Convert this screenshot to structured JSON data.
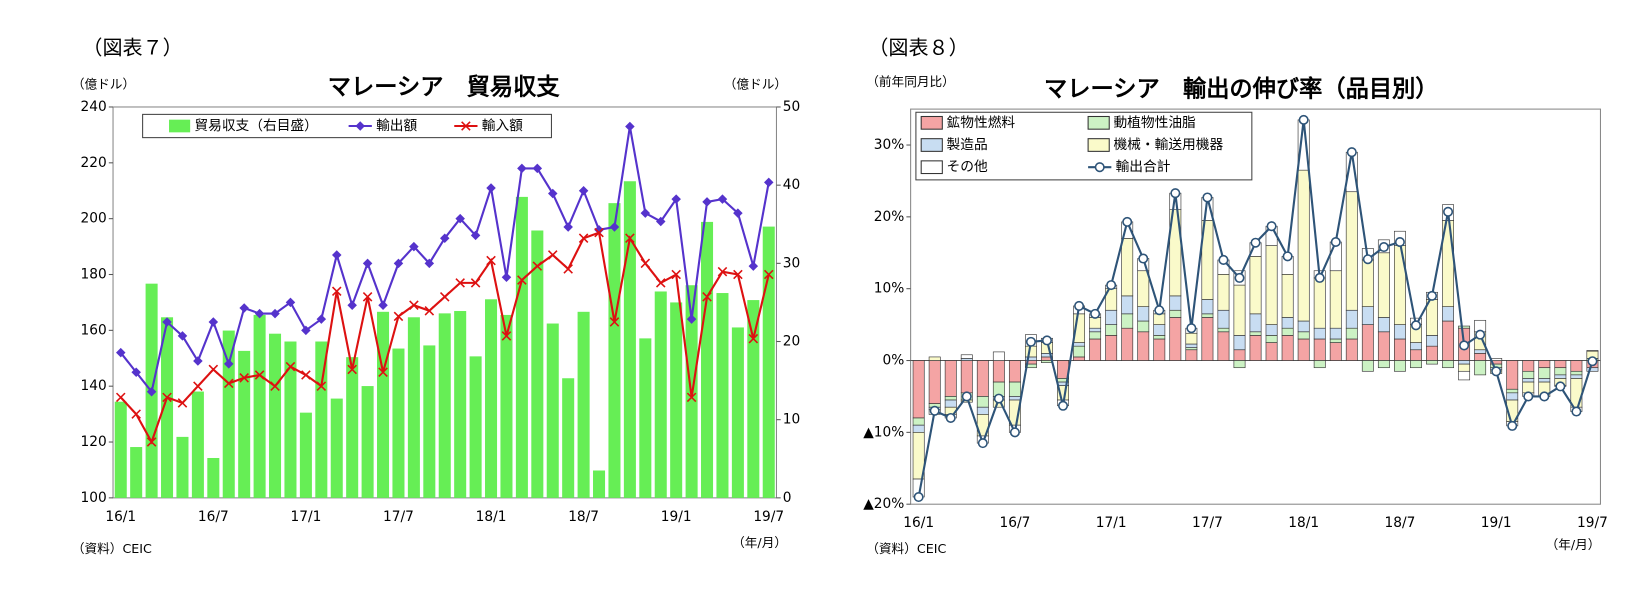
{
  "chart_data": [
    {
      "type": "combo",
      "figure_label": "（図表７）",
      "title": "マレーシア　貿易収支",
      "y_unit": "（億ドル）",
      "y2_unit": "（億ドル）",
      "source": "（資料）CEIC",
      "x_unit": "（年/月）",
      "categories": [
        "16/1",
        null,
        null,
        null,
        null,
        null,
        "16/7",
        null,
        null,
        null,
        null,
        null,
        "17/1",
        null,
        null,
        null,
        null,
        null,
        "17/7",
        null,
        null,
        null,
        null,
        null,
        "18/1",
        null,
        null,
        null,
        null,
        null,
        "18/7",
        null,
        null,
        null,
        null,
        null,
        "19/1",
        null,
        null,
        null,
        null,
        null,
        "19/7"
      ],
      "ylim": [
        100,
        240
      ],
      "yticks": [
        100,
        120,
        140,
        160,
        180,
        200,
        220,
        240
      ],
      "y2lim": [
        0,
        50
      ],
      "y2ticks": [
        0,
        10,
        20,
        30,
        40,
        50
      ],
      "series": [
        {
          "name": "貿易収支（右目盛）",
          "kind": "bar",
          "axis": "y2",
          "color": "#66ee55",
          "values": [
            12.3,
            6.5,
            27.4,
            23.1,
            7.8,
            13.6,
            5.1,
            21.4,
            18.8,
            23.4,
            21.0,
            20.0,
            10.9,
            20.0,
            12.7,
            18.0,
            14.3,
            23.8,
            19.1,
            23.1,
            19.5,
            23.6,
            23.9,
            18.1,
            25.4,
            23.4,
            38.5,
            34.2,
            22.3,
            15.3,
            23.8,
            3.5,
            37.7,
            40.5,
            20.4,
            26.4,
            25.0,
            27.2,
            35.3,
            26.2,
            21.8,
            25.3,
            34.7
          ]
        },
        {
          "name": "輸出額",
          "kind": "line",
          "marker": "diamond",
          "color": "#5533cc",
          "values": [
            152,
            145,
            138,
            163,
            158,
            149,
            163,
            148,
            168,
            166,
            166,
            170,
            160,
            164,
            187,
            169,
            184,
            169,
            184,
            190,
            184,
            193,
            200,
            194,
            211,
            179,
            218,
            218,
            209,
            197,
            210,
            196,
            197,
            233,
            202,
            199,
            207,
            164,
            206,
            207,
            202,
            183,
            213
          ]
        },
        {
          "name": "輸入額",
          "kind": "line",
          "marker": "x",
          "color": "#dd1111",
          "values": [
            136,
            130,
            120,
            136,
            134,
            140,
            146,
            141,
            143,
            144,
            140,
            147,
            144,
            140,
            174,
            146,
            172,
            145,
            165,
            169,
            167,
            172,
            177,
            177,
            185,
            158,
            178,
            183,
            187,
            182,
            193,
            195,
            163,
            193,
            184,
            177,
            180,
            136,
            172,
            181,
            180,
            157,
            180
          ]
        }
      ]
    },
    {
      "type": "stacked_bar",
      "figure_label": "（図表８）",
      "title": "マレーシア　輸出の伸び率（品目別）",
      "y_unit": "（前年同月比）",
      "source": "（資料）CEIC",
      "x_unit": "（年/月）",
      "categories": [
        "16/1",
        null,
        null,
        null,
        null,
        null,
        "16/7",
        null,
        null,
        null,
        null,
        null,
        "17/1",
        null,
        null,
        null,
        null,
        null,
        "17/7",
        null,
        null,
        null,
        null,
        null,
        "18/1",
        null,
        null,
        null,
        null,
        null,
        "18/7",
        null,
        null,
        null,
        null,
        null,
        "19/1",
        null,
        null,
        null,
        null,
        null,
        "19/7"
      ],
      "ylim": [
        -20,
        35
      ],
      "yticks": [
        {
          "value": -20,
          "label": "▲20%"
        },
        {
          "value": -10,
          "label": "▲10%"
        },
        {
          "value": 0,
          "label": "0%"
        },
        {
          "value": 10,
          "label": "10%"
        },
        {
          "value": 20,
          "label": "20%"
        },
        {
          "value": 30,
          "label": "30%"
        }
      ],
      "series": [
        {
          "name": "鉱物性燃料",
          "kind": "bar",
          "color": "#f4a4a4",
          "values": [
            -8,
            -6,
            -5,
            -4.5,
            -5,
            -3,
            -3,
            -0.5,
            0.5,
            -2.5,
            0.5,
            3,
            3.5,
            4.5,
            4,
            3,
            6,
            1.5,
            6,
            4,
            1.5,
            3.5,
            2.5,
            3.5,
            3,
            3,
            2.5,
            3,
            5,
            4,
            3,
            1.5,
            2,
            5.5,
            4.5,
            1,
            -0.5,
            -4,
            -1.5,
            -1,
            -1,
            -1.5,
            -1
          ]
        },
        {
          "name": "動植物性油脂",
          "kind": "bar",
          "color": "#ccf2c4",
          "values": [
            -1,
            -0.5,
            -0.5,
            -1,
            -1.5,
            -2,
            -2,
            -0.5,
            -0.3,
            -0.5,
            1.5,
            1,
            1.5,
            2,
            1.5,
            0.5,
            1,
            0.3,
            0.5,
            0.5,
            -1,
            0.5,
            1,
            1,
            1,
            -1,
            0.5,
            1.5,
            -1.5,
            -1,
            -1.5,
            -1,
            -0.5,
            -1,
            0.3,
            -2,
            -0.5,
            -0.5,
            -1,
            -1.5,
            -1,
            -0.5,
            0.3
          ]
        },
        {
          "name": "製造品",
          "kind": "bar",
          "color": "#c8ddf2",
          "values": [
            -1,
            -0.3,
            -1,
            0.3,
            -1,
            -0.5,
            -0.5,
            0.5,
            0.5,
            -0.5,
            0.5,
            0.5,
            2,
            2.5,
            2,
            1.5,
            2,
            0.5,
            2,
            2.5,
            2,
            2.5,
            1.5,
            1.5,
            1.5,
            1.5,
            1.5,
            2.5,
            2.5,
            2,
            2,
            1,
            1.5,
            2,
            -0.5,
            0.5,
            -0.3,
            -1,
            -0.5,
            -0.5,
            -0.5,
            -0.5,
            -0.5
          ]
        },
        {
          "name": "機械・輸送用機器",
          "kind": "bar",
          "color": "#fafaca",
          "values": [
            -6.5,
            0.5,
            -1,
            -0.3,
            -3,
            -1,
            -3.5,
            1.5,
            1.5,
            -2,
            4,
            1.5,
            3,
            8,
            5,
            1.5,
            12,
            1.5,
            11,
            5,
            7,
            8,
            11,
            6,
            21,
            7,
            8,
            16.5,
            6.5,
            9,
            11,
            2.5,
            5,
            12,
            -1,
            2.5,
            -0.5,
            -3,
            -1.5,
            -2,
            -1,
            -4,
            1
          ]
        },
        {
          "name": "その他",
          "kind": "bar",
          "color": "#ffffff",
          "values": [
            -2.5,
            -0.7,
            -0.5,
            0.5,
            -1,
            1.2,
            -1,
            1.6,
            0.6,
            -0.8,
            1.1,
            0.5,
            0.5,
            2.3,
            1.7,
            0.5,
            2.3,
            0.7,
            3.2,
            2,
            2,
            1.9,
            2.7,
            2.5,
            7,
            1,
            4,
            5.5,
            1.6,
            1.8,
            2,
            0.9,
            1,
            2.2,
            -1.2,
            1.6,
            0.3,
            -0.6,
            -0.5,
            0,
            -0.1,
            -0.6,
            0.1
          ]
        },
        {
          "name": "輸出合計",
          "kind": "line",
          "marker": "circle",
          "color": "#2e5478",
          "values": [
            -19,
            -7,
            -8,
            -5,
            -11.5,
            -5.3,
            -10,
            2.6,
            2.8,
            -6.3,
            7.6,
            6.5,
            10.5,
            19.3,
            14.2,
            7.0,
            23.3,
            4.5,
            22.7,
            14.0,
            11.5,
            16.4,
            18.7,
            14.5,
            33.5,
            11.5,
            16.5,
            29.0,
            14.1,
            15.8,
            16.5,
            4.9,
            9.0,
            20.7,
            2.1,
            3.6,
            -1.5,
            -9.1,
            -5.0,
            -5.0,
            -3.6,
            -7.1,
            -0.1
          ]
        }
      ]
    }
  ]
}
